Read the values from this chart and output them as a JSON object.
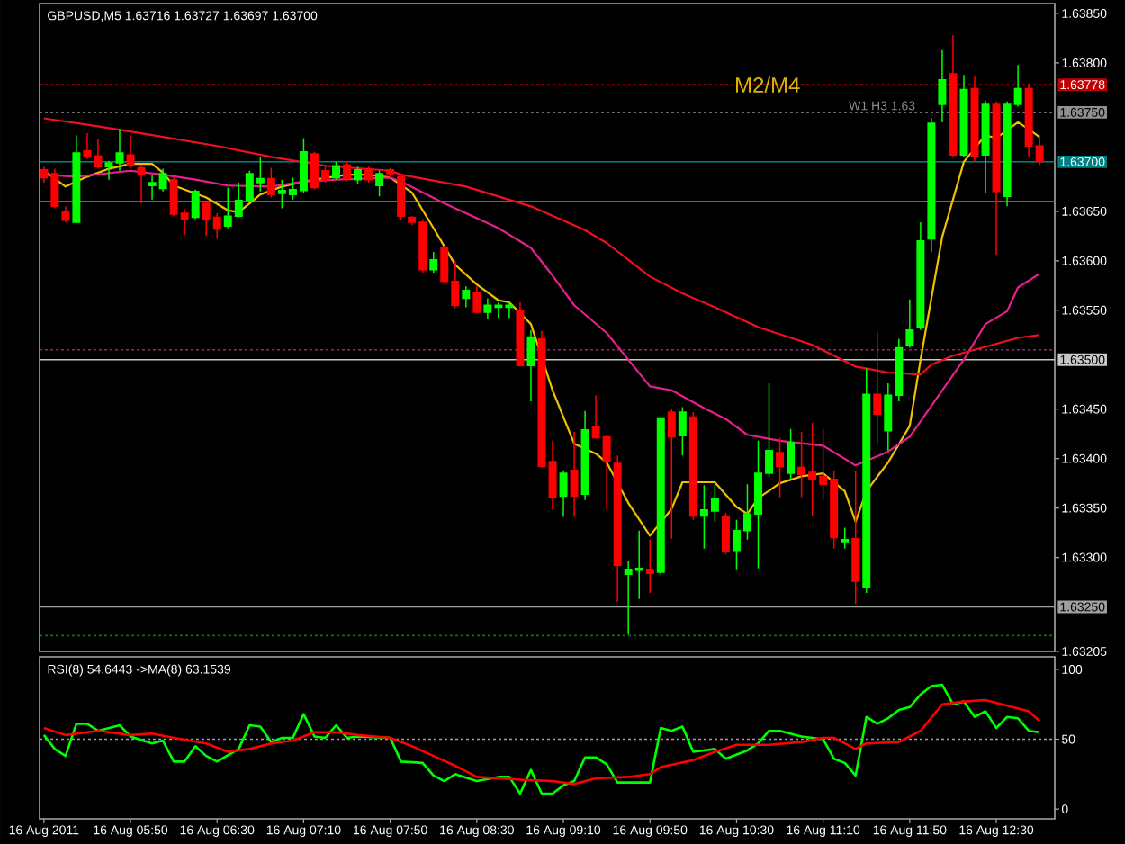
{
  "chart_data": [
    {
      "type": "candlestick",
      "title": "GBPUSD,M5 1.63716 1.63727 1.63697 1.63700",
      "x": [
        "2011-08-16T05:10",
        "2011-08-16T05:15",
        "2011-08-16T05:20",
        "2011-08-16T05:25",
        "2011-08-16T05:30",
        "2011-08-16T05:35",
        "2011-08-16T05:40",
        "2011-08-16T05:45",
        "2011-08-16T05:50",
        "2011-08-16T05:55",
        "2011-08-16T06:00",
        "2011-08-16T06:05",
        "2011-08-16T06:10",
        "2011-08-16T06:15",
        "2011-08-16T06:20",
        "2011-08-16T06:25",
        "2011-08-16T06:30",
        "2011-08-16T06:35",
        "2011-08-16T06:40",
        "2011-08-16T06:45",
        "2011-08-16T06:50",
        "2011-08-16T06:55",
        "2011-08-16T07:00",
        "2011-08-16T07:05",
        "2011-08-16T07:10",
        "2011-08-16T07:15",
        "2011-08-16T07:20",
        "2011-08-16T07:25",
        "2011-08-16T07:30",
        "2011-08-16T07:35",
        "2011-08-16T07:40",
        "2011-08-16T07:45",
        "2011-08-16T07:50",
        "2011-08-16T07:55",
        "2011-08-16T08:00",
        "2011-08-16T08:05",
        "2011-08-16T08:10",
        "2011-08-16T08:15",
        "2011-08-16T08:20",
        "2011-08-16T08:25",
        "2011-08-16T08:30",
        "2011-08-16T08:35",
        "2011-08-16T08:40",
        "2011-08-16T08:45",
        "2011-08-16T08:50",
        "2011-08-16T08:55",
        "2011-08-16T09:00",
        "2011-08-16T09:05",
        "2011-08-16T09:10",
        "2011-08-16T09:15",
        "2011-08-16T09:20",
        "2011-08-16T09:25",
        "2011-08-16T09:30",
        "2011-08-16T09:35",
        "2011-08-16T09:40",
        "2011-08-16T09:45",
        "2011-08-16T09:50",
        "2011-08-16T09:55",
        "2011-08-16T10:00",
        "2011-08-16T10:05",
        "2011-08-16T10:10",
        "2011-08-16T10:15",
        "2011-08-16T10:20",
        "2011-08-16T10:25",
        "2011-08-16T10:30",
        "2011-08-16T10:35",
        "2011-08-16T10:40",
        "2011-08-16T10:45",
        "2011-08-16T10:50",
        "2011-08-16T10:55",
        "2011-08-16T11:00",
        "2011-08-16T11:05",
        "2011-08-16T11:10",
        "2011-08-16T11:15",
        "2011-08-16T11:20",
        "2011-08-16T11:25",
        "2011-08-16T11:30",
        "2011-08-16T11:35",
        "2011-08-16T11:40",
        "2011-08-16T11:45",
        "2011-08-16T11:50",
        "2011-08-16T11:55",
        "2011-08-16T12:00",
        "2011-08-16T12:05",
        "2011-08-16T12:10",
        "2011-08-16T12:15",
        "2011-08-16T12:20",
        "2011-08-16T12:25",
        "2011-08-16T12:30",
        "2011-08-16T12:35",
        "2011-08-16T12:40",
        "2011-08-16T12:45",
        "2011-08-16T12:50"
      ],
      "ohlc": [
        [
          1.63692,
          1.63695,
          1.63679,
          1.63684
        ],
        [
          1.63688,
          1.63693,
          1.63653,
          1.63655
        ],
        [
          1.6365,
          1.63655,
          1.63639,
          1.63641
        ],
        [
          1.63639,
          1.63727,
          1.63638,
          1.63709
        ],
        [
          1.63711,
          1.63729,
          1.63703,
          1.63705
        ],
        [
          1.63706,
          1.63723,
          1.63693,
          1.63695
        ],
        [
          1.63695,
          1.63701,
          1.63682,
          1.63699
        ],
        [
          1.63699,
          1.63733,
          1.63691,
          1.63709
        ],
        [
          1.63707,
          1.63727,
          1.63693,
          1.63697
        ],
        [
          1.63694,
          1.63697,
          1.63658,
          1.63687
        ],
        [
          1.63676,
          1.63687,
          1.63662,
          1.63679
        ],
        [
          1.63673,
          1.63693,
          1.6367,
          1.63688
        ],
        [
          1.63682,
          1.63685,
          1.63645,
          1.63647
        ],
        [
          1.63648,
          1.63652,
          1.63626,
          1.63642
        ],
        [
          1.63644,
          1.63672,
          1.63642,
          1.6367
        ],
        [
          1.63658,
          1.6366,
          1.63625,
          1.63642
        ],
        [
          1.63644,
          1.63648,
          1.63622,
          1.63632
        ],
        [
          1.63635,
          1.63674,
          1.63633,
          1.63645
        ],
        [
          1.63645,
          1.63679,
          1.63644,
          1.63661
        ],
        [
          1.63661,
          1.63691,
          1.63659,
          1.63688
        ],
        [
          1.63679,
          1.63705,
          1.6367,
          1.63683
        ],
        [
          1.63683,
          1.63694,
          1.63664,
          1.63667
        ],
        [
          1.63668,
          1.63682,
          1.63653,
          1.63671
        ],
        [
          1.63667,
          1.63684,
          1.63662,
          1.63672
        ],
        [
          1.63671,
          1.63724,
          1.63668,
          1.6371
        ],
        [
          1.63708,
          1.6371,
          1.63672,
          1.63674
        ],
        [
          1.63691,
          1.63697,
          1.63679,
          1.63682
        ],
        [
          1.63684,
          1.637,
          1.63682,
          1.63696
        ],
        [
          1.63697,
          1.637,
          1.6368,
          1.63683
        ],
        [
          1.63682,
          1.63695,
          1.63678,
          1.63692
        ],
        [
          1.63692,
          1.63695,
          1.63679,
          1.63682
        ],
        [
          1.63676,
          1.63691,
          1.63665,
          1.63688
        ],
        [
          1.63692,
          1.63694,
          1.63684,
          1.63688
        ],
        [
          1.63685,
          1.63688,
          1.63641,
          1.63645
        ],
        [
          1.63644,
          1.63645,
          1.63636,
          1.63639
        ],
        [
          1.63639,
          1.63642,
          1.63588,
          1.63591
        ],
        [
          1.63591,
          1.63609,
          1.63588,
          1.63601
        ],
        [
          1.63613,
          1.63615,
          1.63578,
          1.63579
        ],
        [
          1.63579,
          1.636,
          1.63552,
          1.63555
        ],
        [
          1.63562,
          1.63574,
          1.63553,
          1.6357
        ],
        [
          1.63568,
          1.63574,
          1.63547,
          1.63548
        ],
        [
          1.63548,
          1.63562,
          1.63541,
          1.63555
        ],
        [
          1.63553,
          1.63558,
          1.63542,
          1.63555
        ],
        [
          1.63553,
          1.63558,
          1.63542,
          1.63555
        ],
        [
          1.6355,
          1.63558,
          1.63493,
          1.63494
        ],
        [
          1.63494,
          1.6353,
          1.63458,
          1.63523
        ],
        [
          1.63521,
          1.63529,
          1.63391,
          1.63392
        ],
        [
          1.63397,
          1.63418,
          1.63348,
          1.63361
        ],
        [
          1.63362,
          1.63388,
          1.63341,
          1.63385
        ],
        [
          1.63388,
          1.63427,
          1.63341,
          1.63362
        ],
        [
          1.63364,
          1.63448,
          1.63358,
          1.63429
        ],
        [
          1.63432,
          1.63464,
          1.6342,
          1.63421
        ],
        [
          1.63422,
          1.63424,
          1.63348,
          1.63397
        ],
        [
          1.63395,
          1.63403,
          1.63255,
          1.63292
        ],
        [
          1.63283,
          1.63296,
          1.63222,
          1.63288
        ],
        [
          1.63287,
          1.63327,
          1.63258,
          1.63289
        ],
        [
          1.63288,
          1.63318,
          1.63264,
          1.63284
        ],
        [
          1.63285,
          1.63442,
          1.63283,
          1.63441
        ],
        [
          1.63447,
          1.6345,
          1.63319,
          1.63422
        ],
        [
          1.63423,
          1.63452,
          1.63403,
          1.63447
        ],
        [
          1.63442,
          1.63447,
          1.63338,
          1.63342
        ],
        [
          1.63342,
          1.63373,
          1.63309,
          1.63348
        ],
        [
          1.63347,
          1.63373,
          1.63336,
          1.63359
        ],
        [
          1.63342,
          1.63345,
          1.63303,
          1.63306
        ],
        [
          1.63307,
          1.63338,
          1.63288,
          1.63327
        ],
        [
          1.63327,
          1.63374,
          1.63318,
          1.63344
        ],
        [
          1.63344,
          1.63418,
          1.63289,
          1.63385
        ],
        [
          1.63385,
          1.63476,
          1.63382,
          1.63408
        ],
        [
          1.63406,
          1.63421,
          1.63361,
          1.63392
        ],
        [
          1.63385,
          1.6343,
          1.63379,
          1.63416
        ],
        [
          1.63391,
          1.63427,
          1.63361,
          1.63384
        ],
        [
          1.63386,
          1.63436,
          1.63342,
          1.63379
        ],
        [
          1.63382,
          1.6343,
          1.63358,
          1.63374
        ],
        [
          1.63379,
          1.63388,
          1.63309,
          1.6332
        ],
        [
          1.63316,
          1.6333,
          1.63309,
          1.63318
        ],
        [
          1.63319,
          1.63387,
          1.63253,
          1.63276
        ],
        [
          1.6327,
          1.63491,
          1.63264,
          1.63465
        ],
        [
          1.63465,
          1.63528,
          1.63414,
          1.63445
        ],
        [
          1.63428,
          1.63476,
          1.63408,
          1.63464
        ],
        [
          1.63464,
          1.63521,
          1.63458,
          1.63512
        ],
        [
          1.63515,
          1.63561,
          1.63512,
          1.6353
        ],
        [
          1.63533,
          1.63639,
          1.6353,
          1.6362
        ],
        [
          1.63622,
          1.63744,
          1.63609,
          1.63739
        ],
        [
          1.63758,
          1.63813,
          1.6374,
          1.63783
        ],
        [
          1.63789,
          1.63828,
          1.63705,
          1.63707
        ],
        [
          1.63707,
          1.63788,
          1.63705,
          1.63773
        ],
        [
          1.63774,
          1.63786,
          1.637,
          1.63705
        ],
        [
          1.63707,
          1.63762,
          1.63668,
          1.63758
        ],
        [
          1.63758,
          1.63761,
          1.63606,
          1.6367
        ],
        [
          1.63665,
          1.63761,
          1.63655,
          1.63758
        ],
        [
          1.63758,
          1.63798,
          1.63756,
          1.63774
        ],
        [
          1.63774,
          1.63779,
          1.63705,
          1.63716
        ],
        [
          1.63716,
          1.63727,
          1.63697,
          1.637
        ]
      ],
      "colors": [
        "#ff0000",
        "#ff0000",
        "#ff0000",
        "#00ff00",
        "#ff0000",
        "#ff0000",
        "#00ff00",
        "#00ff00",
        "#ff0000",
        "#ff0000",
        "#00ff00",
        "#00ff00",
        "#ff0000",
        "#ff0000",
        "#00ff00",
        "#ff0000",
        "#ff0000",
        "#00ff00",
        "#00ff00",
        "#00ff00",
        "#00ff00",
        "#ff0000",
        "#00ff00",
        "#00ff00",
        "#00ff00",
        "#ff0000",
        "#ff0000",
        "#00ff00",
        "#ff0000",
        "#00ff00",
        "#ff0000",
        "#00ff00",
        "#ff0000",
        "#ff0000",
        "#ff0000",
        "#ff0000",
        "#00ff00",
        "#ff0000",
        "#ff0000",
        "#00ff00",
        "#ff0000",
        "#00ff00",
        "#00ff00",
        "#00ff00",
        "#ff0000",
        "#00ff00",
        "#ff0000",
        "#ff0000",
        "#00ff00",
        "#ff0000",
        "#00ff00",
        "#ff0000",
        "#ff0000",
        "#ff0000",
        "#00ff00",
        "#00ff00",
        "#ff0000",
        "#00ff00",
        "#ff0000",
        "#00ff00",
        "#ff0000",
        "#00ff00",
        "#00ff00",
        "#ff0000",
        "#00ff00",
        "#00ff00",
        "#00ff00",
        "#00ff00",
        "#ff0000",
        "#00ff00",
        "#ff0000",
        "#ff0000",
        "#ff0000",
        "#ff0000",
        "#00ff00",
        "#ff0000",
        "#00ff00",
        "#ff0000",
        "#00ff00",
        "#00ff00",
        "#00ff00",
        "#00ff00",
        "#00ff00",
        "#00ff00",
        "#ff0000",
        "#00ff00",
        "#ff0000",
        "#00ff00",
        "#ff0000",
        "#00ff00",
        "#00ff00",
        "#ff0000",
        "#ff0000"
      ],
      "series": [
        {
          "type": "line",
          "color": "#f0c000",
          "x": [
            "2011-08-16T05:10",
            "2011-08-16T05:20",
            "2011-08-16T05:30",
            "2011-08-16T05:40",
            "2011-08-16T05:50",
            "2011-08-16T06:00",
            "2011-08-16T06:05",
            "2011-08-16T06:10",
            "2011-08-16T06:25",
            "2011-08-16T06:35",
            "2011-08-16T06:40",
            "2011-08-16T06:45",
            "2011-08-16T06:50",
            "2011-08-16T07:00",
            "2011-08-16T07:10",
            "2011-08-16T07:15",
            "2011-08-16T07:30",
            "2011-08-16T07:40",
            "2011-08-16T07:50",
            "2011-08-16T08:00",
            "2011-08-16T08:10",
            "2011-08-16T08:20",
            "2011-08-16T08:30",
            "2011-08-16T08:40",
            "2011-08-16T08:45",
            "2011-08-16T08:55",
            "2011-08-16T09:05",
            "2011-08-16T09:15",
            "2011-08-16T09:25",
            "2011-08-16T09:30",
            "2011-08-16T09:40",
            "2011-08-16T09:50",
            "2011-08-16T10:00",
            "2011-08-16T10:05",
            "2011-08-16T10:20",
            "2011-08-16T10:30",
            "2011-08-16T10:35",
            "2011-08-16T10:40",
            "2011-08-16T10:50",
            "2011-08-16T11:00",
            "2011-08-16T11:10",
            "2011-08-16T11:20",
            "2011-08-16T11:25",
            "2011-08-16T11:30",
            "2011-08-16T11:40",
            "2011-08-16T11:50",
            "2011-08-16T11:55",
            "2011-08-16T12:05",
            "2011-08-16T12:15",
            "2011-08-16T12:25",
            "2011-08-16T12:30",
            "2011-08-16T12:40",
            "2011-08-16T12:45",
            "2011-08-16T12:50"
          ],
          "values": [
            1.63691,
            1.63675,
            1.63685,
            1.63693,
            1.63698,
            1.63698,
            1.63689,
            1.63676,
            1.63664,
            1.63651,
            1.63649,
            1.63658,
            1.63667,
            1.63675,
            1.6368,
            1.63682,
            1.63687,
            1.63687,
            1.63684,
            1.63669,
            1.63633,
            1.63596,
            1.63576,
            1.6356,
            1.63558,
            1.63536,
            1.63469,
            1.63415,
            1.63405,
            1.63396,
            1.63355,
            1.63322,
            1.63349,
            1.63376,
            1.63376,
            1.63351,
            1.63344,
            1.6336,
            1.63375,
            1.63382,
            1.63385,
            1.63367,
            1.63336,
            1.63367,
            1.63396,
            1.63433,
            1.635,
            1.63624,
            1.637,
            1.63727,
            1.63724,
            1.6374,
            1.63733,
            1.63725
          ]
        },
        {
          "type": "line",
          "color": "#e8208c",
          "x": [
            "2011-08-16T05:10",
            "2011-08-16T05:25",
            "2011-08-16T05:50",
            "2011-08-16T06:05",
            "2011-08-16T06:20",
            "2011-08-16T06:35",
            "2011-08-16T06:55",
            "2011-08-16T07:10",
            "2011-08-16T07:25",
            "2011-08-16T07:50",
            "2011-08-16T07:55",
            "2011-08-16T08:15",
            "2011-08-16T08:40",
            "2011-08-16T08:55",
            "2011-08-16T09:05",
            "2011-08-16T09:15",
            "2011-08-16T09:30",
            "2011-08-16T09:40",
            "2011-08-16T09:50",
            "2011-08-16T10:00",
            "2011-08-16T10:15",
            "2011-08-16T10:25",
            "2011-08-16T10:35",
            "2011-08-16T10:50",
            "2011-08-16T11:10",
            "2011-08-16T11:25",
            "2011-08-16T11:40",
            "2011-08-16T11:50",
            "2011-08-16T12:05",
            "2011-08-16T12:15",
            "2011-08-16T12:25",
            "2011-08-16T12:35",
            "2011-08-16T12:40",
            "2011-08-16T12:50"
          ],
          "values": [
            1.63687,
            1.63685,
            1.63691,
            1.63687,
            1.63682,
            1.63676,
            1.63675,
            1.6368,
            1.63682,
            1.63684,
            1.6368,
            1.63658,
            1.63633,
            1.63613,
            1.63585,
            1.63555,
            1.63527,
            1.635,
            1.63473,
            1.63469,
            1.63451,
            1.6344,
            1.63424,
            1.63418,
            1.63413,
            1.63393,
            1.63407,
            1.63422,
            1.63469,
            1.635,
            1.63536,
            1.63549,
            1.63573,
            1.63587
          ]
        },
        {
          "type": "line",
          "color": "#f01020",
          "x": [
            "2011-08-16T05:10",
            "2011-08-16T05:35",
            "2011-08-16T06:00",
            "2011-08-16T06:30",
            "2011-08-16T06:55",
            "2011-08-16T07:20",
            "2011-08-16T07:50",
            "2011-08-16T07:55",
            "2011-08-16T08:25",
            "2011-08-16T08:55",
            "2011-08-16T09:20",
            "2011-08-16T09:30",
            "2011-08-16T09:50",
            "2011-08-16T10:05",
            "2011-08-16T10:20",
            "2011-08-16T10:40",
            "2011-08-16T11:05",
            "2011-08-16T11:25",
            "2011-08-16T11:40",
            "2011-08-16T11:55",
            "2011-08-16T12:00",
            "2011-08-16T12:10",
            "2011-08-16T12:25",
            "2011-08-16T12:40",
            "2011-08-16T12:50"
          ],
          "values": [
            1.63744,
            1.63736,
            1.63727,
            1.63716,
            1.63705,
            1.63696,
            1.63691,
            1.63687,
            1.63675,
            1.63655,
            1.63631,
            1.63618,
            1.63584,
            1.63567,
            1.63553,
            1.63533,
            1.63515,
            1.63493,
            1.63487,
            1.63485,
            1.63495,
            1.63504,
            1.63513,
            1.63522,
            1.63525
          ]
        }
      ],
      "xlim": [
        "2011-08-16T05:08",
        "2011-08-16T12:57"
      ],
      "ylim": [
        1.63205,
        1.6386
      ],
      "yticks": [
        {
          "value": 1.6385,
          "label": "1.63850"
        },
        {
          "value": 1.638,
          "label": "1.63800"
        },
        {
          "value": 1.6365,
          "label": "1.63650"
        },
        {
          "value": 1.636,
          "label": "1.63600"
        },
        {
          "value": 1.6355,
          "label": "1.63550"
        },
        {
          "value": 1.6345,
          "label": "1.63450"
        },
        {
          "value": 1.634,
          "label": "1.63400"
        },
        {
          "value": 1.6335,
          "label": "1.63350"
        },
        {
          "value": 1.633,
          "label": "1.63300"
        },
        {
          "value": 1.63205,
          "label": "1.63205"
        }
      ],
      "tick_labels": "y",
      "ref_lines": [
        {
          "axis": "y",
          "value": 1.63778,
          "label": "1.63778",
          "color": "#c00000",
          "line_style": "dotted"
        },
        {
          "axis": "y",
          "value": 1.6375,
          "label": "1.63750",
          "color": "#909090",
          "line_style": "dotted"
        },
        {
          "axis": "y",
          "value": 1.637,
          "label": "1.63700",
          "color": "#008080",
          "line_style": "solid"
        },
        {
          "axis": "y",
          "value": 1.6366,
          "color": "#a05a10",
          "line_style": "solid"
        },
        {
          "axis": "y",
          "value": 1.6351,
          "color": "#a0207a",
          "line_style": "dotted"
        },
        {
          "axis": "y",
          "value": 1.635,
          "label": "1.63500",
          "color": "#c8c8c8",
          "line_style": "solid"
        },
        {
          "axis": "y",
          "value": 1.6325,
          "label": "1.63250",
          "color": "#a0a0a0",
          "line_style": "solid"
        },
        {
          "axis": "y",
          "value": 1.63221,
          "color": "#007a00",
          "line_style": "dotted"
        }
      ],
      "annotations": [
        {
          "text": "M2/M4",
          "x": "2011-08-16T10:28",
          "y": 1.63778
        },
        {
          "text": "W1 H3 1.63",
          "y": 1.6375
        }
      ]
    },
    {
      "type": "line",
      "title": "RSI(8) 54.6443  ->MA(8) 63.1539",
      "series": [
        {
          "color": "#00ff00",
          "x": [
            "2011-08-16T05:10",
            "2011-08-16T05:15",
            "2011-08-16T05:20",
            "2011-08-16T05:25",
            "2011-08-16T05:30",
            "2011-08-16T05:35",
            "2011-08-16T05:45",
            "2011-08-16T05:50",
            "2011-08-16T06:00",
            "2011-08-16T06:05",
            "2011-08-16T06:10",
            "2011-08-16T06:15",
            "2011-08-16T06:20",
            "2011-08-16T06:25",
            "2011-08-16T06:30",
            "2011-08-16T06:40",
            "2011-08-16T06:45",
            "2011-08-16T06:50",
            "2011-08-16T06:55",
            "2011-08-16T07:00",
            "2011-08-16T07:05",
            "2011-08-16T07:10",
            "2011-08-16T07:15",
            "2011-08-16T07:20",
            "2011-08-16T07:25",
            "2011-08-16T07:30",
            "2011-08-16T07:35",
            "2011-08-16T07:50",
            "2011-08-16T07:55",
            "2011-08-16T08:05",
            "2011-08-16T08:10",
            "2011-08-16T08:15",
            "2011-08-16T08:20",
            "2011-08-16T08:30",
            "2011-08-16T08:40",
            "2011-08-16T08:45",
            "2011-08-16T08:50",
            "2011-08-16T08:55",
            "2011-08-16T09:00",
            "2011-08-16T09:05",
            "2011-08-16T09:10",
            "2011-08-16T09:15",
            "2011-08-16T09:20",
            "2011-08-16T09:25",
            "2011-08-16T09:30",
            "2011-08-16T09:35",
            "2011-08-16T09:50",
            "2011-08-16T09:55",
            "2011-08-16T10:00",
            "2011-08-16T10:05",
            "2011-08-16T10:10",
            "2011-08-16T10:15",
            "2011-08-16T10:20",
            "2011-08-16T10:25",
            "2011-08-16T10:35",
            "2011-08-16T10:40",
            "2011-08-16T10:45",
            "2011-08-16T10:50",
            "2011-08-16T11:00",
            "2011-08-16T11:10",
            "2011-08-16T11:15",
            "2011-08-16T11:20",
            "2011-08-16T11:25",
            "2011-08-16T11:30",
            "2011-08-16T11:35",
            "2011-08-16T11:40",
            "2011-08-16T11:45",
            "2011-08-16T11:50",
            "2011-08-16T11:55",
            "2011-08-16T12:00",
            "2011-08-16T12:05",
            "2011-08-16T12:10",
            "2011-08-16T12:15",
            "2011-08-16T12:20",
            "2011-08-16T12:25",
            "2011-08-16T12:30",
            "2011-08-16T12:35",
            "2011-08-16T12:40",
            "2011-08-16T12:45",
            "2011-08-16T12:50"
          ],
          "values": [
            53,
            43,
            38,
            61,
            61,
            56,
            60,
            52,
            47,
            49,
            34,
            34,
            45,
            38,
            34,
            43,
            60,
            59,
            48,
            51,
            51,
            68,
            52,
            51,
            60,
            51,
            52,
            51,
            34,
            33,
            24,
            20,
            25,
            20,
            23,
            23,
            11,
            28,
            11,
            11,
            17,
            20,
            37,
            37,
            32,
            19,
            19,
            58,
            56,
            59,
            41,
            42,
            43,
            36,
            42,
            47,
            56,
            56,
            52,
            50,
            36,
            33,
            24,
            66,
            61,
            65,
            71,
            73,
            82,
            88,
            89,
            75,
            77,
            66,
            70,
            58,
            66,
            65,
            56,
            55
          ]
        },
        {
          "color": "#ff0000",
          "x": [
            "2011-08-16T05:10",
            "2011-08-16T05:20",
            "2011-08-16T05:35",
            "2011-08-16T05:50",
            "2011-08-16T06:00",
            "2011-08-16T06:10",
            "2011-08-16T06:25",
            "2011-08-16T06:35",
            "2011-08-16T06:45",
            "2011-08-16T06:55",
            "2011-08-16T07:05",
            "2011-08-16T07:15",
            "2011-08-16T07:25",
            "2011-08-16T07:35",
            "2011-08-16T07:50",
            "2011-08-16T08:00",
            "2011-08-16T08:10",
            "2011-08-16T08:20",
            "2011-08-16T08:30",
            "2011-08-16T08:40",
            "2011-08-16T08:50",
            "2011-08-16T09:05",
            "2011-08-16T09:15",
            "2011-08-16T09:25",
            "2011-08-16T09:40",
            "2011-08-16T09:50",
            "2011-08-16T09:55",
            "2011-08-16T10:10",
            "2011-08-16T10:20",
            "2011-08-16T10:30",
            "2011-08-16T10:45",
            "2011-08-16T11:00",
            "2011-08-16T11:10",
            "2011-08-16T11:15",
            "2011-08-16T11:25",
            "2011-08-16T11:30",
            "2011-08-16T11:45",
            "2011-08-16T11:55",
            "2011-08-16T12:05",
            "2011-08-16T12:15",
            "2011-08-16T12:25",
            "2011-08-16T12:35",
            "2011-08-16T12:45",
            "2011-08-16T12:50"
          ],
          "values": [
            58,
            53,
            56,
            53,
            54,
            51,
            47,
            41,
            43,
            47,
            49,
            55,
            55,
            53,
            51,
            45,
            38,
            31,
            23,
            22,
            21,
            20,
            18,
            22,
            23,
            25,
            30,
            35,
            41,
            46,
            46,
            48,
            51,
            51,
            43,
            47,
            48,
            56,
            75,
            77,
            78,
            74,
            70,
            63
          ]
        }
      ],
      "xlim": [
        "2011-08-16T05:08",
        "2011-08-16T12:57"
      ],
      "xticks": [
        {
          "value": "2011-08-16T05:10",
          "label": "16 Aug 2011"
        },
        {
          "value": "2011-08-16T05:50",
          "label": "16 Aug 05:50"
        },
        {
          "value": "2011-08-16T06:30",
          "label": "16 Aug 06:30"
        },
        {
          "value": "2011-08-16T07:10",
          "label": "16 Aug 07:10"
        },
        {
          "value": "2011-08-16T07:50",
          "label": "16 Aug 07:50"
        },
        {
          "value": "2011-08-16T08:30",
          "label": "16 Aug 08:30"
        },
        {
          "value": "2011-08-16T09:10",
          "label": "16 Aug 09:10"
        },
        {
          "value": "2011-08-16T09:50",
          "label": "16 Aug 09:50"
        },
        {
          "value": "2011-08-16T10:30",
          "label": "16 Aug 10:30"
        },
        {
          "value": "2011-08-16T11:10",
          "label": "16 Aug 11:10"
        },
        {
          "value": "2011-08-16T11:50",
          "label": "16 Aug 11:50"
        },
        {
          "value": "2011-08-16T12:30",
          "label": "16 Aug 12:30"
        }
      ],
      "ylim": [
        -7,
        109
      ],
      "yticks": [
        0,
        50,
        100
      ],
      "ref_lines": [
        {
          "axis": "y",
          "value": 50,
          "color": "#a0a0a0",
          "line_style": "dotted"
        }
      ]
    }
  ]
}
